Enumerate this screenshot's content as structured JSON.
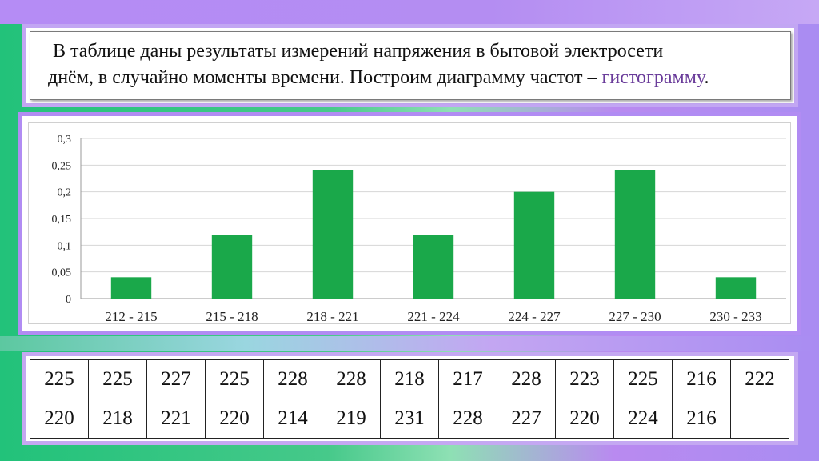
{
  "description": {
    "line1": "В таблице даны результаты измерений напряжения в бытовой электросети",
    "line2_prefix": "днём, в случайно моменты времени. Построим диаграмму частот – ",
    "line2_highlight": "гистограмму",
    "line2_suffix": "."
  },
  "colors": {
    "bar": "#1aa84a",
    "highlight": "#6a3c9a",
    "frame": "#b79bf0"
  },
  "chart_data": {
    "type": "bar",
    "categories": [
      "212 - 215",
      "215 - 218",
      "218 - 221",
      "221 - 224",
      "224 - 227",
      "227 - 230",
      "230 - 233"
    ],
    "values": [
      0.04,
      0.12,
      0.24,
      0.12,
      0.2,
      0.24,
      0.04
    ],
    "ylim": [
      0,
      0.3
    ],
    "yticks": [
      "0",
      "0,05",
      "0,1",
      "0,15",
      "0,2",
      "0,25",
      "0,3"
    ],
    "grid": true,
    "title": "",
    "xlabel": "",
    "ylabel": ""
  },
  "table": {
    "rows": [
      [
        "225",
        "225",
        "227",
        "225",
        "228",
        "228",
        "218",
        "217",
        "228",
        "223",
        "225",
        "216",
        "222"
      ],
      [
        "220",
        "218",
        "221",
        "220",
        "214",
        "219",
        "231",
        "228",
        "227",
        "220",
        "224",
        "216",
        ""
      ]
    ]
  }
}
